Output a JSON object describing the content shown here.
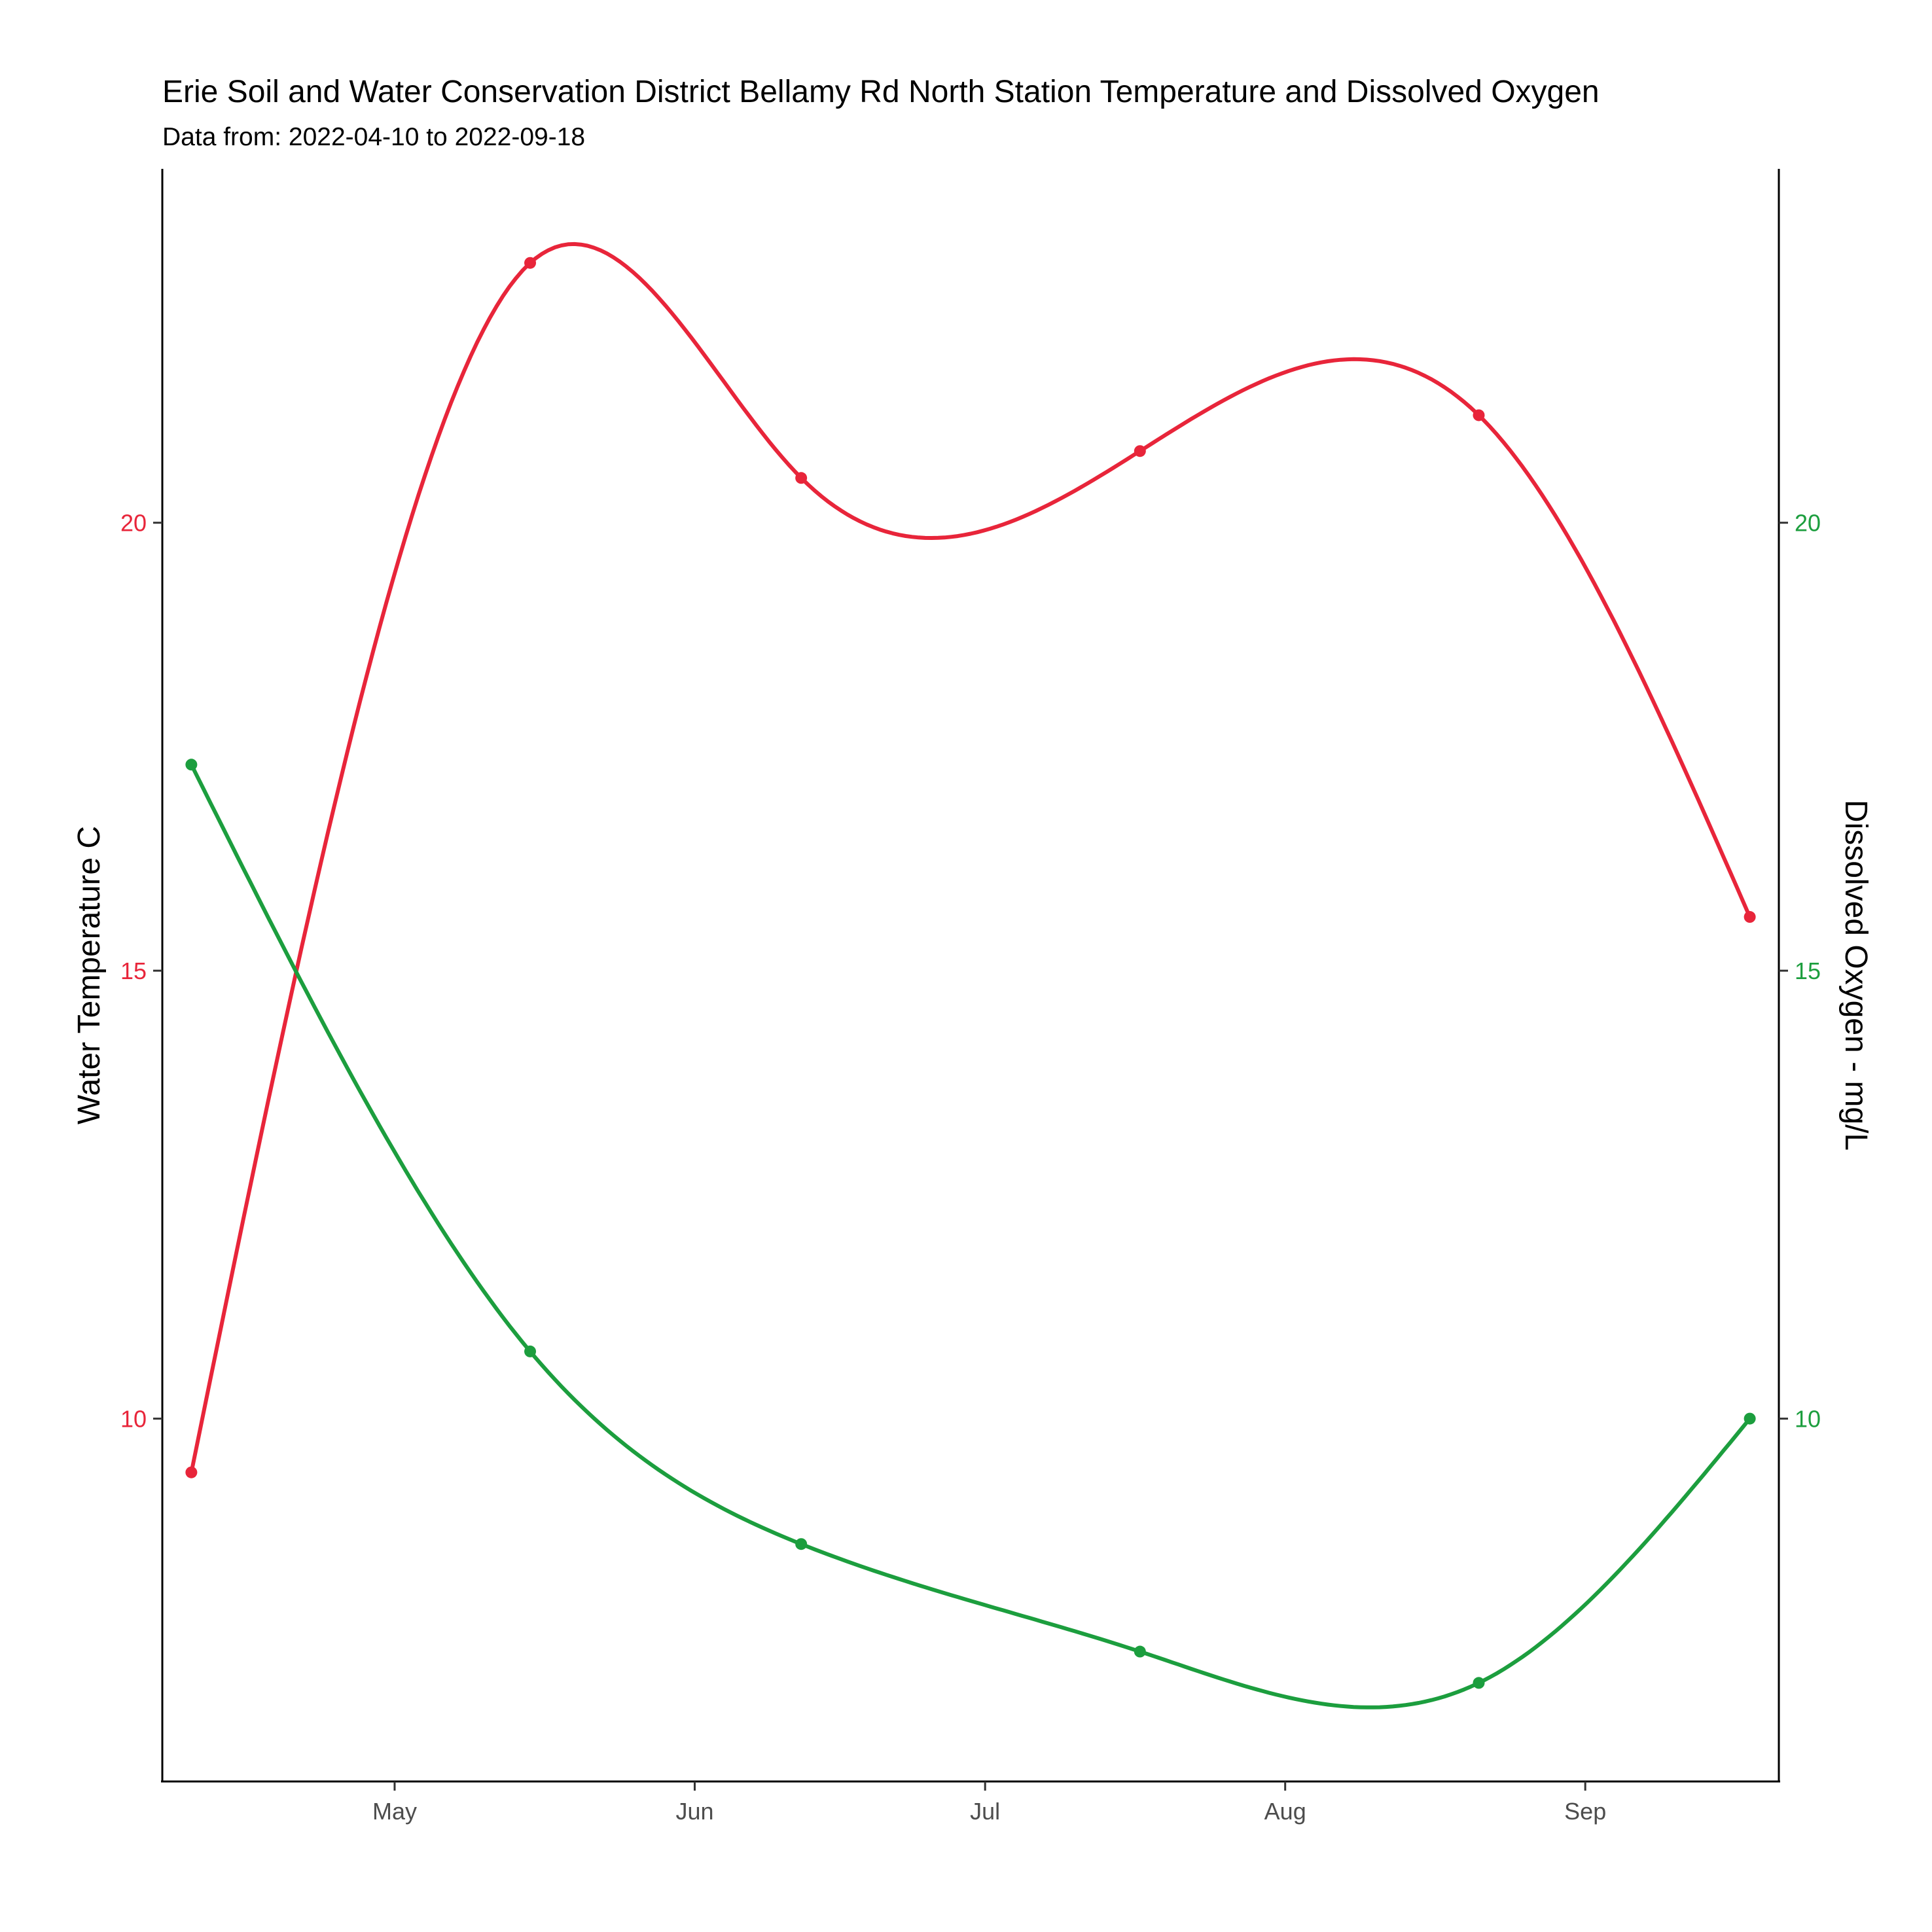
{
  "chart_data": {
    "type": "line",
    "title": "Erie Soil and Water Conservation District Bellamy Rd North Station Temperature and Dissolved Oxygen",
    "subtitle": "Data from: 2022-04-10 to 2022-09-18",
    "ylabel_left": "Water Temperature C",
    "ylabel_right": "Dissolved Oxygen - mg/L",
    "xlim": [
      "2022-04-07",
      "2022-09-21"
    ],
    "ylim": [
      5.95,
      23.95
    ],
    "y_ticks_left": [
      10,
      15,
      20
    ],
    "y_ticks_right": [
      10,
      15,
      20
    ],
    "x_ticks": [
      {
        "date": "2022-05-01",
        "label": "May"
      },
      {
        "date": "2022-06-01",
        "label": "Jun"
      },
      {
        "date": "2022-07-01",
        "label": "Jul"
      },
      {
        "date": "2022-08-01",
        "label": "Aug"
      },
      {
        "date": "2022-09-01",
        "label": "Sep"
      }
    ],
    "grid": false,
    "legend": "none",
    "series": [
      {
        "axis": "left",
        "color": "#e8253a",
        "smooth": true,
        "x": [
          "2022-04-10",
          "2022-05-15",
          "2022-06-12",
          "2022-07-17",
          "2022-08-21",
          "2022-09-18"
        ],
        "y": [
          9.4,
          22.9,
          20.5,
          20.8,
          21.2,
          15.6
        ]
      },
      {
        "axis": "right",
        "color": "#1c9e3e",
        "smooth": true,
        "x": [
          "2022-04-10",
          "2022-05-15",
          "2022-06-12",
          "2022-07-17",
          "2022-08-21",
          "2022-09-18"
        ],
        "y": [
          17.3,
          10.75,
          8.6,
          7.4,
          7.05,
          10.0
        ]
      }
    ]
  }
}
